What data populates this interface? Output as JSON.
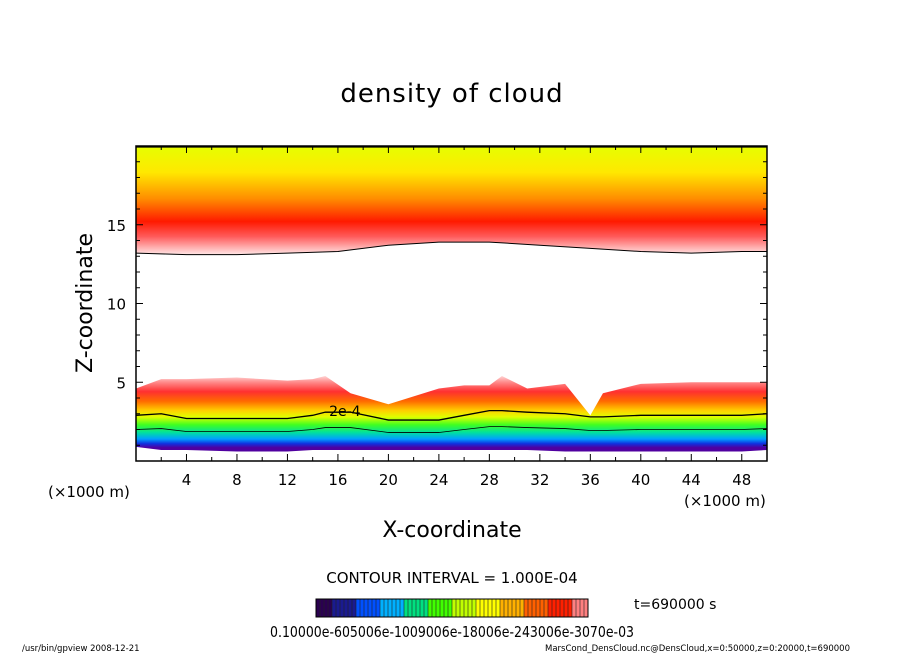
{
  "chart_data": {
    "type": "heatmap",
    "title": "density of cloud",
    "xlabel": "X-coordinate",
    "ylabel": "Z-coordinate",
    "x_unit": "(×1000 m)",
    "x_unit_right": "(×1000 m)",
    "xlim": [
      0,
      50
    ],
    "ylim": [
      0,
      20
    ],
    "x_ticks": [
      "4",
      "8",
      "12",
      "16",
      "20",
      "24",
      "28",
      "32",
      "36",
      "40",
      "44",
      "48"
    ],
    "y_ticks": [
      "5",
      "10",
      "15"
    ],
    "contour_interval": "CONTOUR INTERVAL = 1.000E-04",
    "contour_label": "2e-4",
    "time_label": "t=690000 s",
    "colorbar_labels": "0.10000e-605006e-1009006e-18006e-243006e-3070e-03",
    "colorbar_colors": [
      "#2a0050",
      "#1a1a90",
      "#0050ff",
      "#00b0ff",
      "#00e080",
      "#40ff00",
      "#c0ff00",
      "#ffff00",
      "#ffb000",
      "#ff6000",
      "#ff2000",
      "#ff8080"
    ],
    "upper_band": {
      "x": [
        0,
        4,
        8,
        12,
        16,
        20,
        24,
        28,
        32,
        36,
        40,
        44,
        48,
        50
      ],
      "bottom_z": [
        13.2,
        13.1,
        13.1,
        13.2,
        13.3,
        13.7,
        13.9,
        13.9,
        13.7,
        13.5,
        13.3,
        13.2,
        13.3,
        13.3
      ],
      "peak_z": 15.2,
      "top_z": 20
    },
    "lower_band": {
      "x": [
        0,
        2,
        4,
        8,
        12,
        14,
        15,
        17,
        20,
        24,
        26,
        28,
        29,
        31,
        34,
        36,
        37,
        40,
        44,
        48,
        50
      ],
      "top_z": [
        4.6,
        5.2,
        5.2,
        5.3,
        5.1,
        5.2,
        5.4,
        4.3,
        3.6,
        4.6,
        4.8,
        4.8,
        5.4,
        4.6,
        4.9,
        2.9,
        4.3,
        4.9,
        5.0,
        5.0,
        5.0
      ],
      "contour_2e4_z": [
        2.9,
        3.0,
        2.7,
        2.7,
        2.7,
        2.9,
        3.1,
        3.1,
        2.6,
        2.6,
        2.9,
        3.2,
        3.2,
        3.1,
        3.0,
        2.8,
        2.8,
        2.9,
        2.9,
        2.9,
        3.0
      ],
      "bottom_z": [
        0.9,
        0.7,
        0.7,
        0.6,
        0.6,
        0.7,
        0.7,
        0.7,
        0.7,
        0.7,
        0.7,
        0.7,
        0.7,
        0.7,
        0.6,
        0.6,
        0.6,
        0.6,
        0.6,
        0.6,
        0.7
      ]
    }
  },
  "footer": {
    "left": "/usr/bin/gpview   2008-12-21",
    "right": "MarsCond_DensCloud.nc@DensCloud,x=0:50000,z=0:20000,t=690000"
  }
}
